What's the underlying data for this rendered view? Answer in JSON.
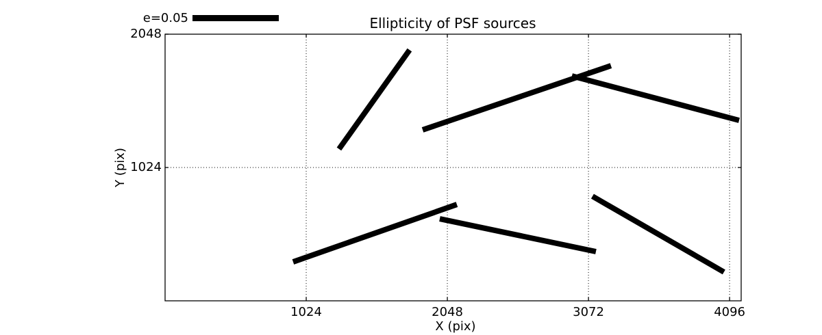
{
  "figure": {
    "background": "#ffffff",
    "colors": {
      "line": "#000000",
      "frame": "#000000",
      "grid": "#000000",
      "text": "#000000"
    }
  },
  "chart_data": {
    "type": "line",
    "subtype": "psf-ellipticity-whiskers",
    "title": "Ellipticity of PSF sources",
    "xlabel": "X (pix)",
    "ylabel": "Y (pix)",
    "xlim": [
      0,
      4180
    ],
    "ylim": [
      0,
      2048
    ],
    "x_ticks": [
      1024,
      2048,
      3072,
      4096
    ],
    "y_ticks": [
      1024,
      2048
    ],
    "grid": "dotted",
    "legend": {
      "label": "e=0.05",
      "e_value": 0.05,
      "position": "top-left"
    },
    "segments": [
      {
        "x1": 1262,
        "y1": 1166,
        "x2": 1774,
        "y2": 1927
      },
      {
        "x1": 1869,
        "y1": 1313,
        "x2": 3235,
        "y2": 1806
      },
      {
        "x1": 2952,
        "y1": 1727,
        "x2": 4165,
        "y2": 1386
      },
      {
        "x1": 929,
        "y1": 299,
        "x2": 2117,
        "y2": 740
      },
      {
        "x1": 1993,
        "y1": 630,
        "x2": 3126,
        "y2": 378
      },
      {
        "x1": 3101,
        "y1": 803,
        "x2": 4055,
        "y2": 221
      }
    ]
  }
}
